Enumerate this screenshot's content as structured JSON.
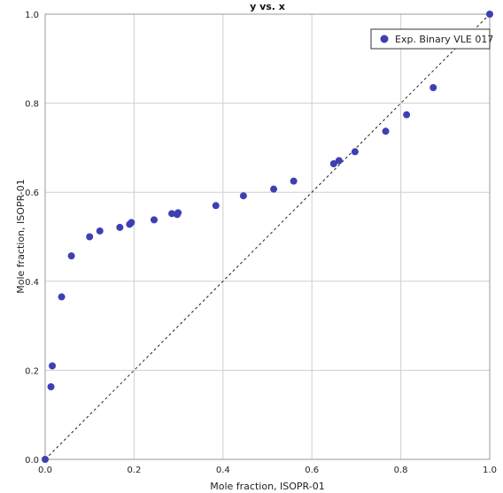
{
  "chart_data": {
    "type": "scatter",
    "title": "y vs. x",
    "xlabel": "Mole fraction, ISOPR-01",
    "ylabel": "Mole fraction, ISOPR-01",
    "xlim": [
      0,
      1
    ],
    "ylim": [
      0,
      1
    ],
    "x_ticks": [
      "0.0",
      "0.2",
      "0.4",
      "0.6",
      "0.8",
      "1.0"
    ],
    "y_ticks": [
      "0.0",
      "0.2",
      "0.4",
      "0.6",
      "0.8",
      "1.0"
    ],
    "grid": true,
    "legend_position": "top-right",
    "reference_line": "diagonal y = x (dashed)",
    "series": [
      {
        "name": "Exp. Binary VLE 017",
        "color": "#3f3fb4",
        "points": [
          {
            "x": 0.0,
            "y": 0.0
          },
          {
            "x": 0.013,
            "y": 0.163
          },
          {
            "x": 0.016,
            "y": 0.21
          },
          {
            "x": 0.037,
            "y": 0.365
          },
          {
            "x": 0.059,
            "y": 0.457
          },
          {
            "x": 0.1,
            "y": 0.5
          },
          {
            "x": 0.123,
            "y": 0.513
          },
          {
            "x": 0.168,
            "y": 0.521
          },
          {
            "x": 0.19,
            "y": 0.528
          },
          {
            "x": 0.194,
            "y": 0.532
          },
          {
            "x": 0.245,
            "y": 0.538
          },
          {
            "x": 0.285,
            "y": 0.552
          },
          {
            "x": 0.297,
            "y": 0.55
          },
          {
            "x": 0.299,
            "y": 0.554
          },
          {
            "x": 0.384,
            "y": 0.57
          },
          {
            "x": 0.446,
            "y": 0.592
          },
          {
            "x": 0.514,
            "y": 0.607
          },
          {
            "x": 0.559,
            "y": 0.625
          },
          {
            "x": 0.649,
            "y": 0.664
          },
          {
            "x": 0.661,
            "y": 0.671
          },
          {
            "x": 0.697,
            "y": 0.691
          },
          {
            "x": 0.766,
            "y": 0.737
          },
          {
            "x": 0.813,
            "y": 0.774
          },
          {
            "x": 0.873,
            "y": 0.835
          },
          {
            "x": 1.0,
            "y": 1.0
          }
        ]
      }
    ]
  }
}
